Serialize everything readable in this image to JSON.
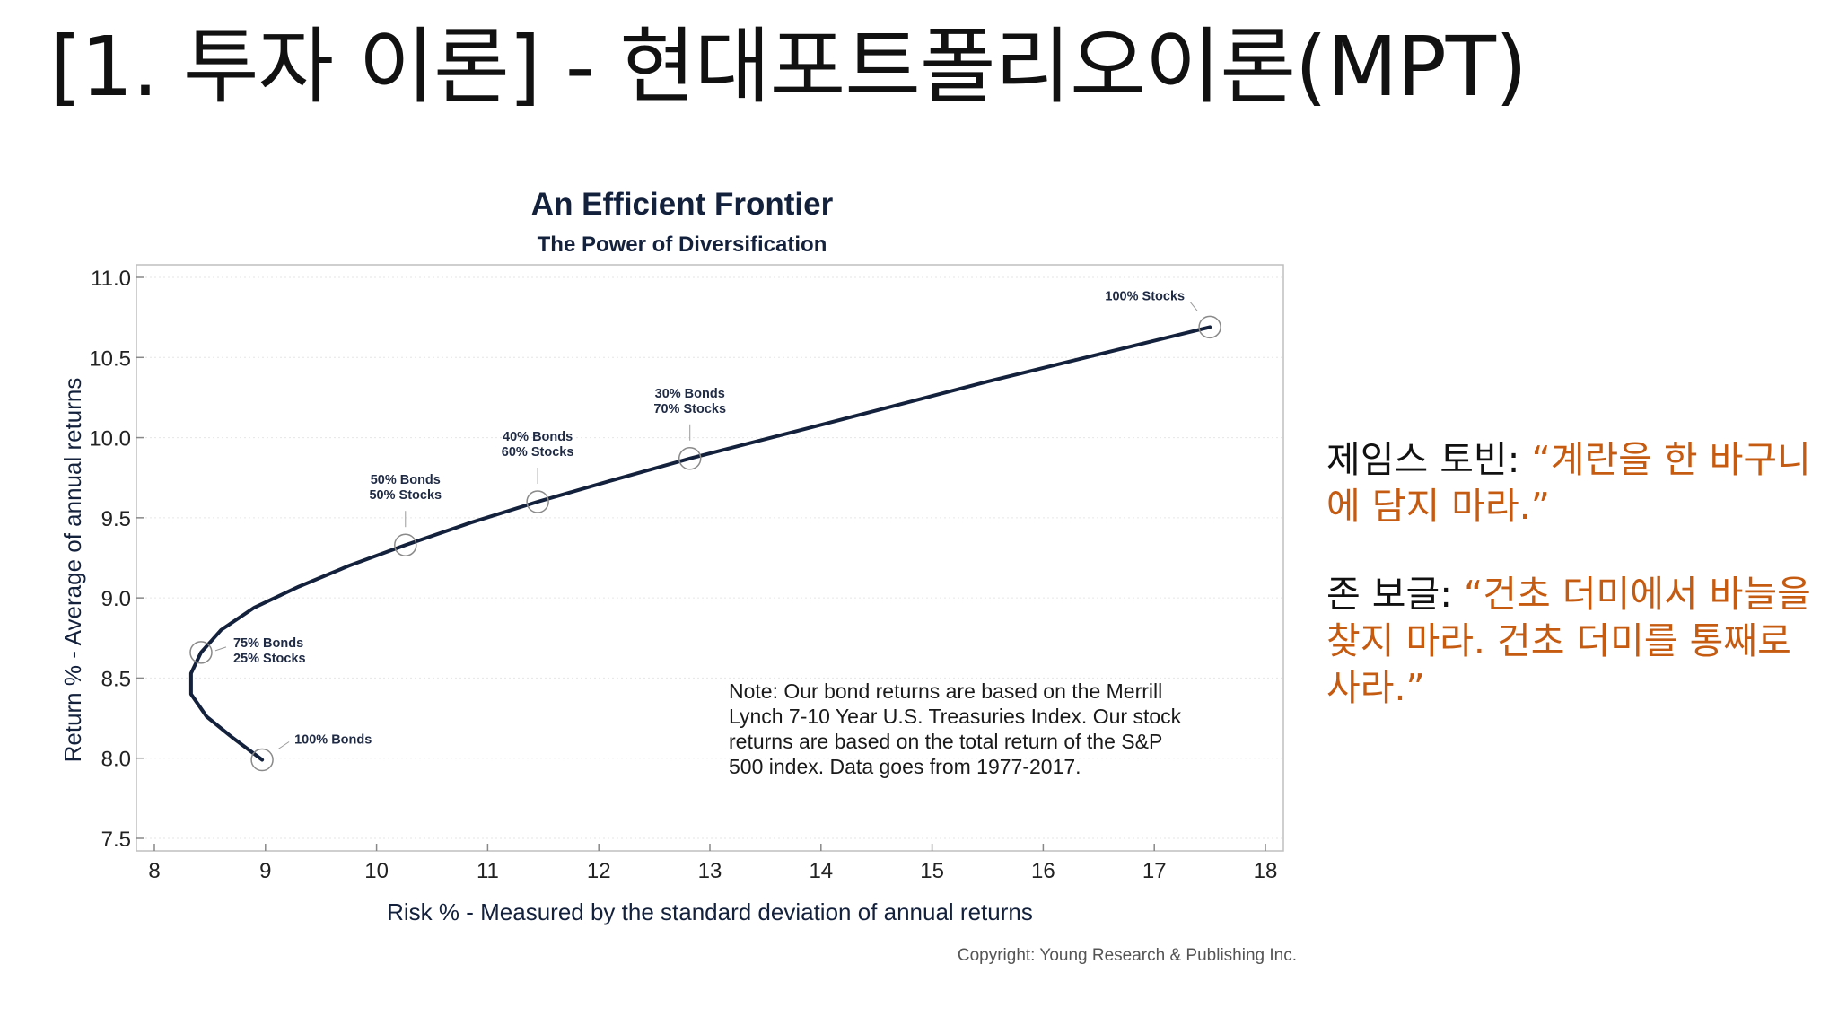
{
  "slide": {
    "title": "[1. 투자 이론] - 현대포트폴리오이론(MPT)"
  },
  "quotes": [
    {
      "speaker": "제임스 토빈: ",
      "text": "“계란을 한 바구니에 담지 마라.”"
    },
    {
      "speaker": "존 보글: ",
      "text": "“건초 더미에서 바늘을 찾지 마라. 건초 더미를 통째로 사라.”"
    }
  ],
  "chart_data": {
    "type": "line",
    "title": "An Efficient Frontier",
    "subtitle": "The Power of Diversification",
    "xlabel": "Risk % - Measured by the standard deviation of annual returns",
    "ylabel": "Return % - Average of annual returns",
    "xlim": [
      8,
      18
    ],
    "ylim": [
      7.5,
      11.0
    ],
    "x_ticks": [
      8,
      9,
      10,
      11,
      12,
      13,
      14,
      15,
      16,
      17,
      18
    ],
    "y_ticks": [
      "7.5",
      "8.0",
      "8.5",
      "9.0",
      "9.5",
      "10.0",
      "10.5",
      "11.0"
    ],
    "grid": "horizontal",
    "line_color": "#14213d",
    "curve": {
      "x": [
        8.97,
        8.7,
        8.47,
        8.33,
        8.33,
        8.42,
        8.6,
        8.9,
        9.3,
        9.75,
        10.26,
        10.85,
        11.45,
        12.1,
        12.82,
        14.0,
        15.5,
        17.5
      ],
      "y": [
        7.99,
        8.13,
        8.26,
        8.4,
        8.53,
        8.66,
        8.8,
        8.94,
        9.07,
        9.2,
        9.33,
        9.47,
        9.6,
        9.73,
        9.87,
        10.08,
        10.35,
        10.69
      ]
    },
    "points": [
      {
        "label": [
          "100% Bonds"
        ],
        "x": 8.97,
        "y": 7.99
      },
      {
        "label": [
          "75% Bonds",
          "25% Stocks"
        ],
        "x": 8.42,
        "y": 8.66
      },
      {
        "label": [
          "50% Bonds",
          "50% Stocks"
        ],
        "x": 10.26,
        "y": 9.33
      },
      {
        "label": [
          "40% Bonds",
          "60% Stocks"
        ],
        "x": 11.45,
        "y": 9.6
      },
      {
        "label": [
          "30% Bonds",
          "70% Stocks"
        ],
        "x": 12.82,
        "y": 9.87
      },
      {
        "label": [
          "100% Stocks"
        ],
        "x": 17.5,
        "y": 10.69
      }
    ],
    "note": [
      "Note:  Our bond returns are based on the Merrill",
      "Lynch 7-10 Year U.S. Treasuries Index.  Our stock",
      "returns are based on the total return of the S&P",
      "500 index.  Data goes from 1977-2017."
    ],
    "copyright": "Copyright: Young Research & Publishing Inc."
  }
}
